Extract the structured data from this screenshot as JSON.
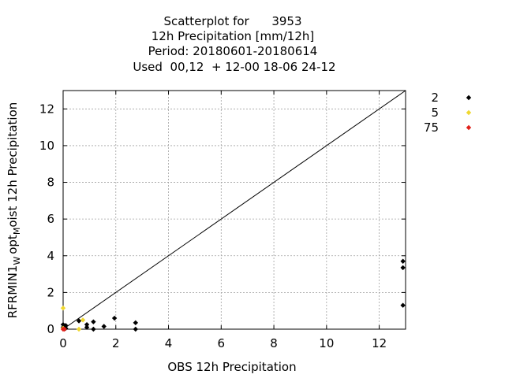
{
  "chart_data": {
    "type": "scatter",
    "title_lines": [
      "Scatterplot for      3953",
      "12h Precipitation [mm/12h]",
      "Period: 20180601-20180614",
      "Used  00,12  + 12-00 18-06 24-12"
    ],
    "xlabel": "OBS 12h Precipitation",
    "ylabel_parts": {
      "p1": "RFRMIN1",
      "s1": "W",
      "p2": "opt",
      "s2": "M",
      "p3": "oist 12h Precipitation"
    },
    "xlim": [
      0,
      13
    ],
    "ylim": [
      0,
      13
    ],
    "xticks": [
      0,
      2,
      4,
      6,
      8,
      10,
      12
    ],
    "yticks": [
      0,
      2,
      4,
      6,
      8,
      10,
      12
    ],
    "grid": true,
    "legend_placement": "right",
    "series": [
      {
        "name": "2",
        "color": "#000000",
        "points": [
          [
            0,
            0.25
          ],
          [
            0,
            0.1
          ],
          [
            0.1,
            0.2
          ],
          [
            0.1,
            0.05
          ],
          [
            0.6,
            0.45
          ],
          [
            0.9,
            0.25
          ],
          [
            0.9,
            0.1
          ],
          [
            1.15,
            0.4
          ],
          [
            1.15,
            0
          ],
          [
            1.55,
            0.15
          ],
          [
            1.95,
            0.6
          ],
          [
            2.75,
            0.35
          ],
          [
            2.75,
            0
          ],
          [
            12.9,
            3.7
          ],
          [
            12.9,
            3.35
          ],
          [
            12.9,
            1.3
          ]
        ]
      },
      {
        "name": "5",
        "color": "#f0d830",
        "points": [
          [
            0,
            1.15
          ],
          [
            0,
            0.05
          ],
          [
            0.6,
            0
          ],
          [
            0.75,
            0.5
          ]
        ]
      },
      {
        "name": "75",
        "color": "#e0201a",
        "points": [
          [
            0,
            0
          ],
          [
            0.05,
            0
          ]
        ]
      }
    ],
    "reference_line": [
      [
        0,
        0
      ],
      [
        13,
        13
      ]
    ]
  }
}
